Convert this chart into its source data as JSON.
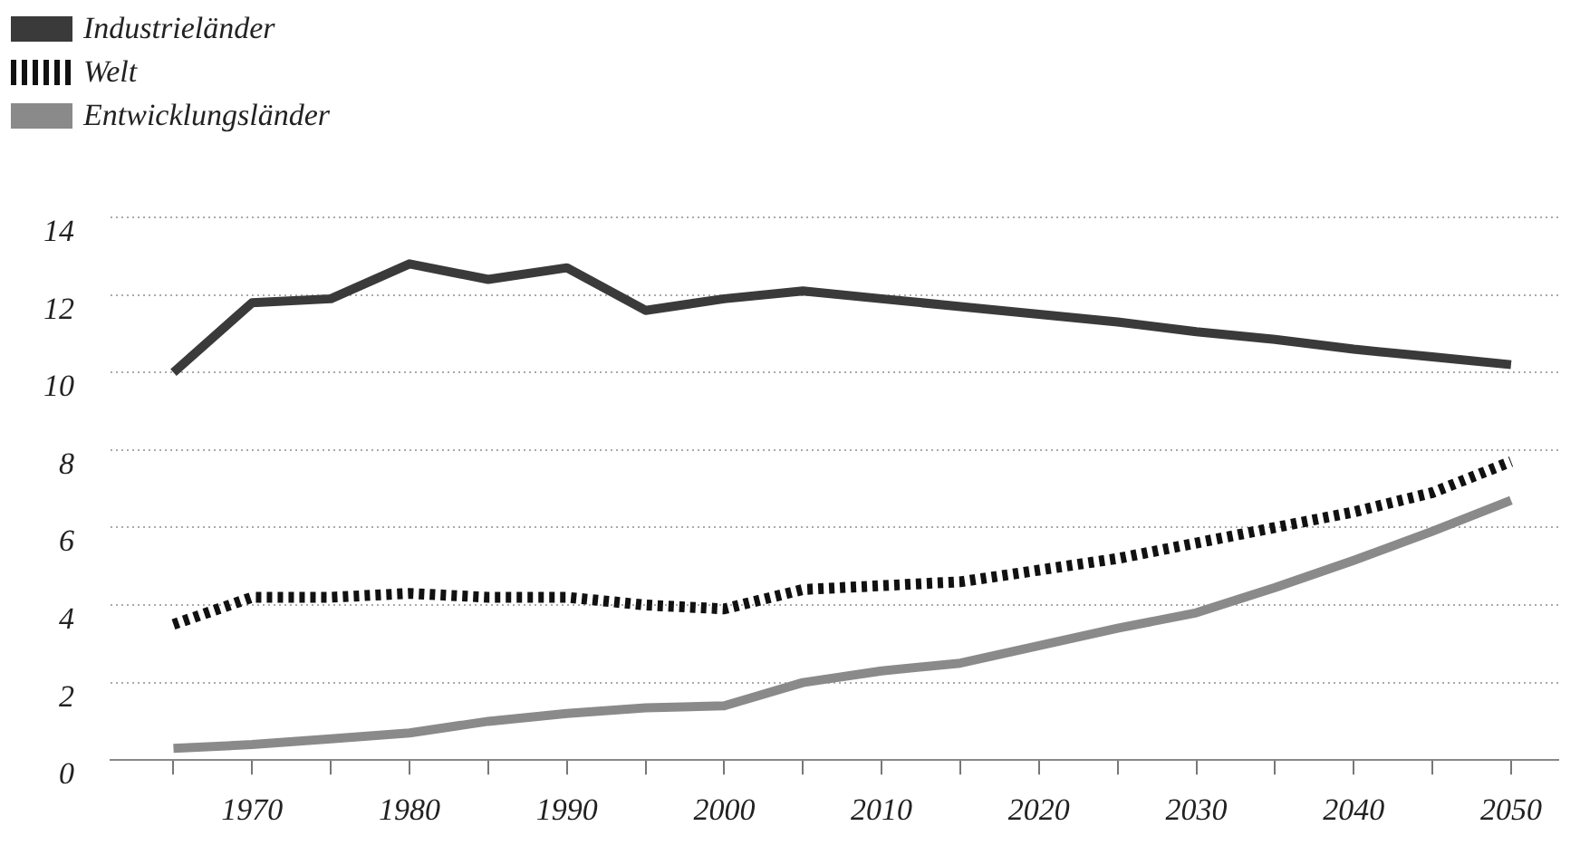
{
  "chart_data": {
    "type": "line",
    "x": [
      1965,
      1970,
      1975,
      1980,
      1985,
      1990,
      1995,
      2000,
      2005,
      2010,
      2015,
      2020,
      2025,
      2030,
      2035,
      2040,
      2045,
      2050
    ],
    "series": [
      {
        "name": "Industrieländer",
        "color": "#3a3a3a",
        "line_style": "solid",
        "values": [
          10.0,
          11.8,
          11.9,
          12.8,
          12.4,
          12.7,
          11.6,
          11.9,
          12.1,
          11.9,
          11.7,
          11.5,
          11.3,
          11.05,
          10.85,
          10.6,
          10.4,
          10.2
        ]
      },
      {
        "name": "Welt",
        "color": "#111111",
        "line_style": "dashed",
        "values": [
          3.5,
          4.2,
          4.2,
          4.3,
          4.2,
          4.2,
          4.0,
          3.9,
          4.4,
          4.5,
          4.6,
          4.9,
          5.2,
          5.6,
          6.0,
          6.4,
          6.9,
          7.7
        ]
      },
      {
        "name": "Entwicklungsländer",
        "color": "#8a8a8a",
        "line_style": "solid",
        "values": [
          0.3,
          0.4,
          0.55,
          0.7,
          1.0,
          1.2,
          1.35,
          1.4,
          2.0,
          2.3,
          2.5,
          2.95,
          3.4,
          3.8,
          4.45,
          5.15,
          5.9,
          6.7
        ]
      }
    ],
    "xlim": [
      1961,
      2053
    ],
    "xticks": [
      {
        "value": 1965,
        "label": null
      },
      1970,
      {
        "value": 1975,
        "label": null
      },
      1980,
      {
        "value": 1985,
        "label": null
      },
      1990,
      {
        "value": 1995,
        "label": null
      },
      2000,
      {
        "value": 2005,
        "label": null
      },
      2010,
      {
        "value": 2015,
        "label": null
      },
      2020,
      {
        "value": 2025,
        "label": null
      },
      2030,
      {
        "value": 2035,
        "label": null
      },
      2040,
      {
        "value": 2045,
        "label": null
      },
      2050
    ],
    "ylim": [
      0,
      14
    ],
    "yticks": [
      0,
      2,
      4,
      6,
      8,
      10,
      12,
      14
    ],
    "grid": "y",
    "legend": "top left",
    "marker": "none"
  }
}
